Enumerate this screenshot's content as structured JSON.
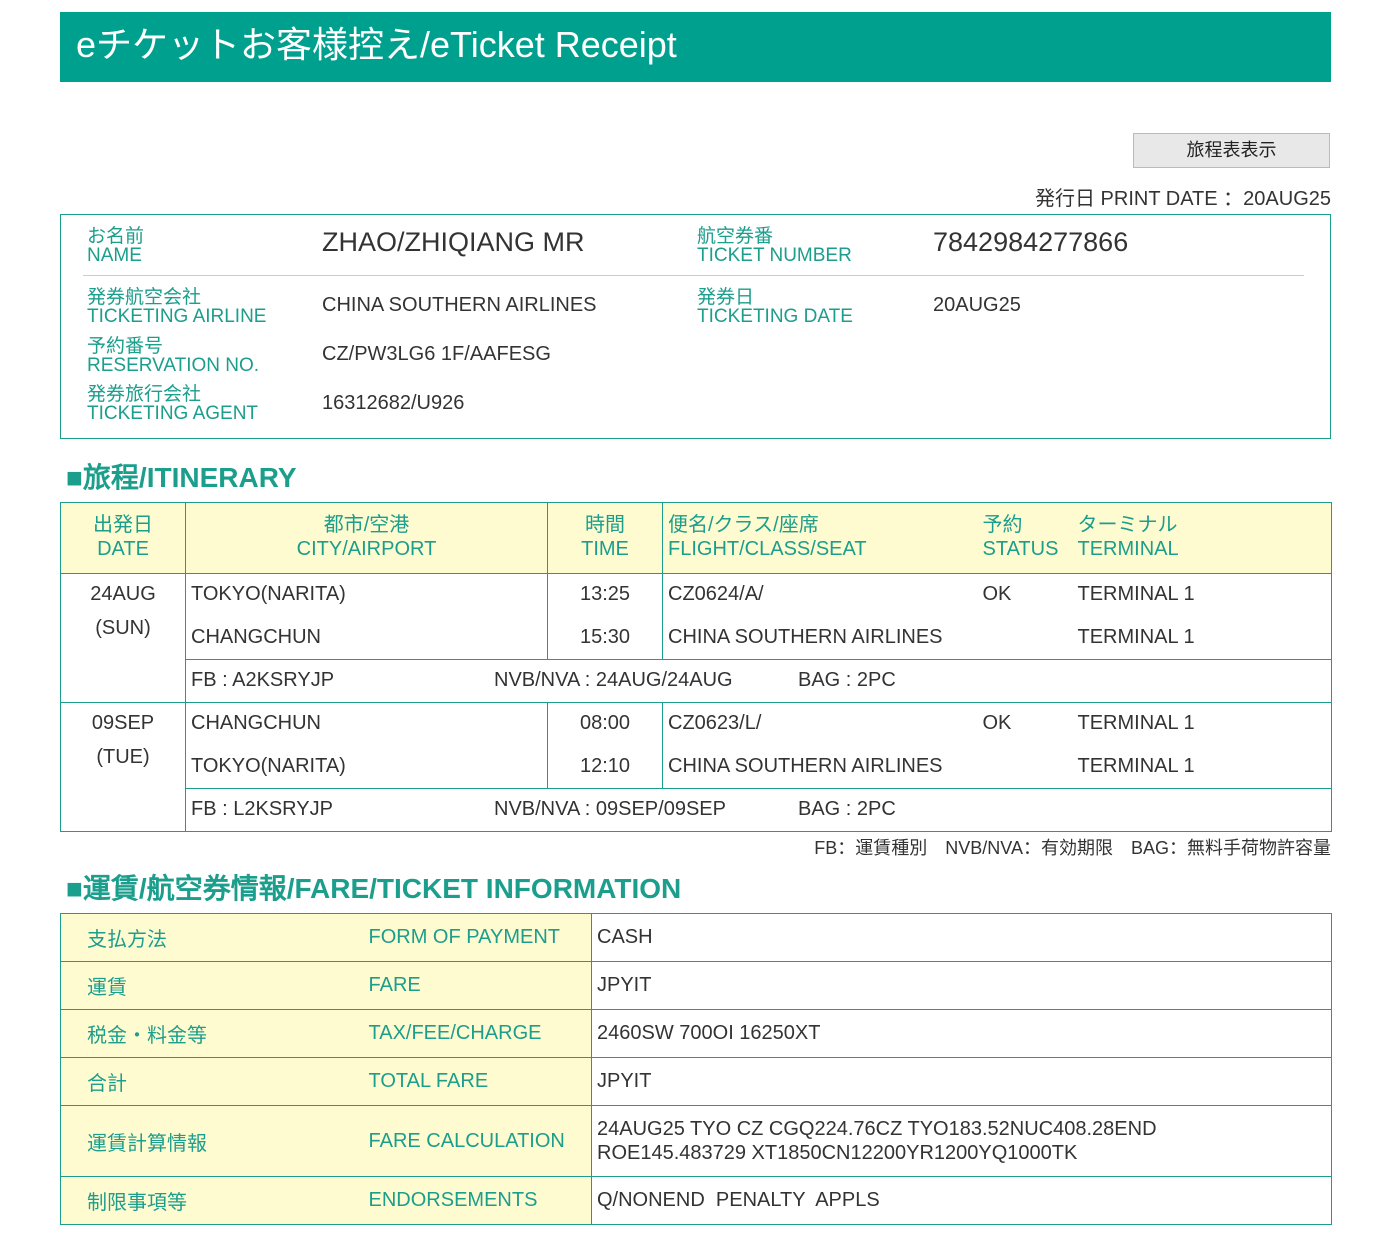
{
  "title": "eチケットお客様控え/eTicket Receipt",
  "itinerary_button": "旅程表表示",
  "print_date": "発行日 PRINT DATE ：20AUG25",
  "info": {
    "name_jp": "お名前",
    "name_en": "NAME",
    "name": "ZHAO/ZHIQIANG MR",
    "ticket_jp": "航空券番",
    "ticket_en": "TICKET NUMBER",
    "ticket": "7842984277866",
    "airline_jp": "発券航空会社",
    "airline_en": "TICKETING AIRLINE",
    "airline": "CHINA SOUTHERN AIRLINES",
    "tdate_jp": "発券日",
    "tdate_en": "TICKETING DATE",
    "tdate": "20AUG25",
    "res_jp": "予約番号",
    "res_en": "RESERVATION NO.",
    "res": "CZ/PW3LG6 1F/AAFESG",
    "agent_jp": "発券旅行会社",
    "agent_en": "TICKETING AGENT",
    "agent": "16312682/U926"
  },
  "itinerary": {
    "heading": "■旅程/ITINERARY",
    "headers": [
      [
        "出発日",
        "DATE"
      ],
      [
        "都市/空港",
        "CITY/AIRPORT"
      ],
      [
        "時間",
        "TIME"
      ],
      [
        "便名/クラス/座席",
        "FLIGHT/CLASS/SEAT"
      ],
      [
        "予約",
        "STATUS"
      ],
      [
        "ターミナル",
        "TERMINAL"
      ]
    ],
    "segments": [
      {
        "date": "24AUG",
        "day": "(SUN)",
        "from": "TOKYO(NARITA)",
        "to": "CHANGCHUN",
        "dep": "13:25",
        "arr": "15:30",
        "flight": "CZ0624/A/",
        "airline": "CHINA SOUTHERN AIRLINES",
        "status": "OK",
        "term1": "TERMINAL 1",
        "term2": "TERMINAL 1",
        "fb": "FB : A2KSRYJP",
        "nvb": "NVB/NVA : 24AUG/24AUG",
        "bag": "BAG : 2PC"
      },
      {
        "date": "09SEP",
        "day": "(TUE)",
        "from": "CHANGCHUN",
        "to": "TOKYO(NARITA)",
        "dep": "08:00",
        "arr": "12:10",
        "flight": "CZ0623/L/",
        "airline": "CHINA SOUTHERN AIRLINES",
        "status": "OK",
        "term1": "TERMINAL 1",
        "term2": "TERMINAL 1",
        "fb": "FB : L2KSRYJP",
        "nvb": "NVB/NVA : 09SEP/09SEP",
        "bag": "BAG : 2PC"
      }
    ],
    "legend": "FB：運賃種別　NVB/NVA：有効期限　BAG：無料手荷物許容量"
  },
  "fare": {
    "heading": "■運賃/航空券情報/FARE/TICKET INFORMATION",
    "rows": [
      {
        "jp": "支払方法",
        "en": "FORM OF PAYMENT",
        "val": "CASH"
      },
      {
        "jp": "運賃",
        "en": "FARE",
        "val": "JPYIT"
      },
      {
        "jp": "税金・料金等",
        "en": "TAX/FEE/CHARGE",
        "val": "2460SW 700OI 16250XT"
      },
      {
        "jp": "合計",
        "en": "TOTAL FARE",
        "val": "JPYIT"
      },
      {
        "jp": "運賃計算情報",
        "en": "FARE CALCULATION",
        "val": "24AUG25 TYO CZ CGQ224.76CZ TYO183.52NUC408.28END",
        "val2": "ROE145.483729 XT1850CN12200YR1200YQ1000TK"
      },
      {
        "jp": "制限事項等",
        "en": "ENDORSEMENTS",
        "val": "Q/NONEND  PENALTY  APPLS"
      }
    ]
  }
}
